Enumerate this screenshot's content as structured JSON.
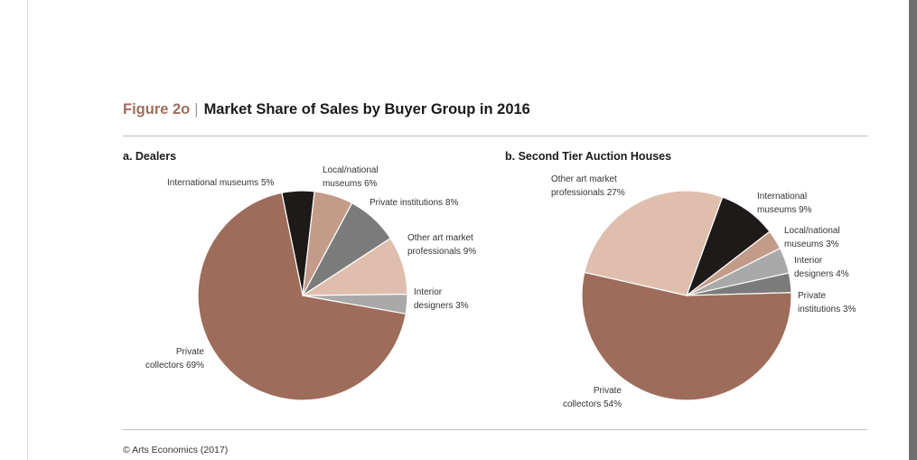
{
  "figure": {
    "number": "Figure 2o",
    "separator": "|",
    "title": "Market Share of Sales by Buyer Group in 2016"
  },
  "footer": "© Arts Economics (2017)",
  "colors": {
    "figure_number": "#a06e5c",
    "international_museums": "#1f1a1a",
    "local_national_museums": "#c39b89",
    "private_institutions": "#7b7b7b",
    "other_art_market_professionals": "#dfbeae",
    "interior_designers": "#a9a9a9",
    "private_collectors": "#9e6c5b"
  },
  "chart_data": [
    {
      "type": "pie",
      "title": "a. Dealers",
      "slices": [
        {
          "label": "International museums 5%",
          "lines": [
            "International museums 5%"
          ],
          "value": 5,
          "color": "#1f1a1a"
        },
        {
          "label": "Local/national museums 6%",
          "lines": [
            "Local/national",
            "museums 6%"
          ],
          "value": 6,
          "color": "#c39b89"
        },
        {
          "label": "Private institutions 8%",
          "lines": [
            "Private institutions 8%"
          ],
          "value": 8,
          "color": "#7b7b7b"
        },
        {
          "label": "Other art market professionals 9%",
          "lines": [
            "Other art market",
            "professionals 9%"
          ],
          "value": 9,
          "color": "#dfbeae"
        },
        {
          "label": "Interior designers 3%",
          "lines": [
            "Interior",
            "designers 3%"
          ],
          "value": 3,
          "color": "#a9a9a9"
        },
        {
          "label": "Private collectors 69%",
          "lines": [
            "Private",
            "collectors 69%"
          ],
          "value": 69,
          "color": "#9e6c5b"
        }
      ]
    },
    {
      "type": "pie",
      "title": "b. Second Tier Auction Houses",
      "slices": [
        {
          "label": "International museums 9%",
          "lines": [
            "International",
            "museums 9%"
          ],
          "value": 9,
          "color": "#1f1a1a"
        },
        {
          "label": "Local/national museums 3%",
          "lines": [
            "Local/national",
            "museums 3%"
          ],
          "value": 3,
          "color": "#c39b89"
        },
        {
          "label": "Interior designers 4%",
          "lines": [
            "Interior",
            "designers 4%"
          ],
          "value": 4,
          "color": "#a9a9a9"
        },
        {
          "label": "Private institutions 3%",
          "lines": [
            "Private",
            "institutions 3%"
          ],
          "value": 3,
          "color": "#7b7b7b"
        },
        {
          "label": "Private collectors 54%",
          "lines": [
            "Private",
            "collectors 54%"
          ],
          "value": 54,
          "color": "#9e6c5b"
        },
        {
          "label": "Other art market professionals 27%",
          "lines": [
            "Other art market",
            "professionals 27%"
          ],
          "value": 27,
          "color": "#dfbeae"
        }
      ]
    }
  ]
}
